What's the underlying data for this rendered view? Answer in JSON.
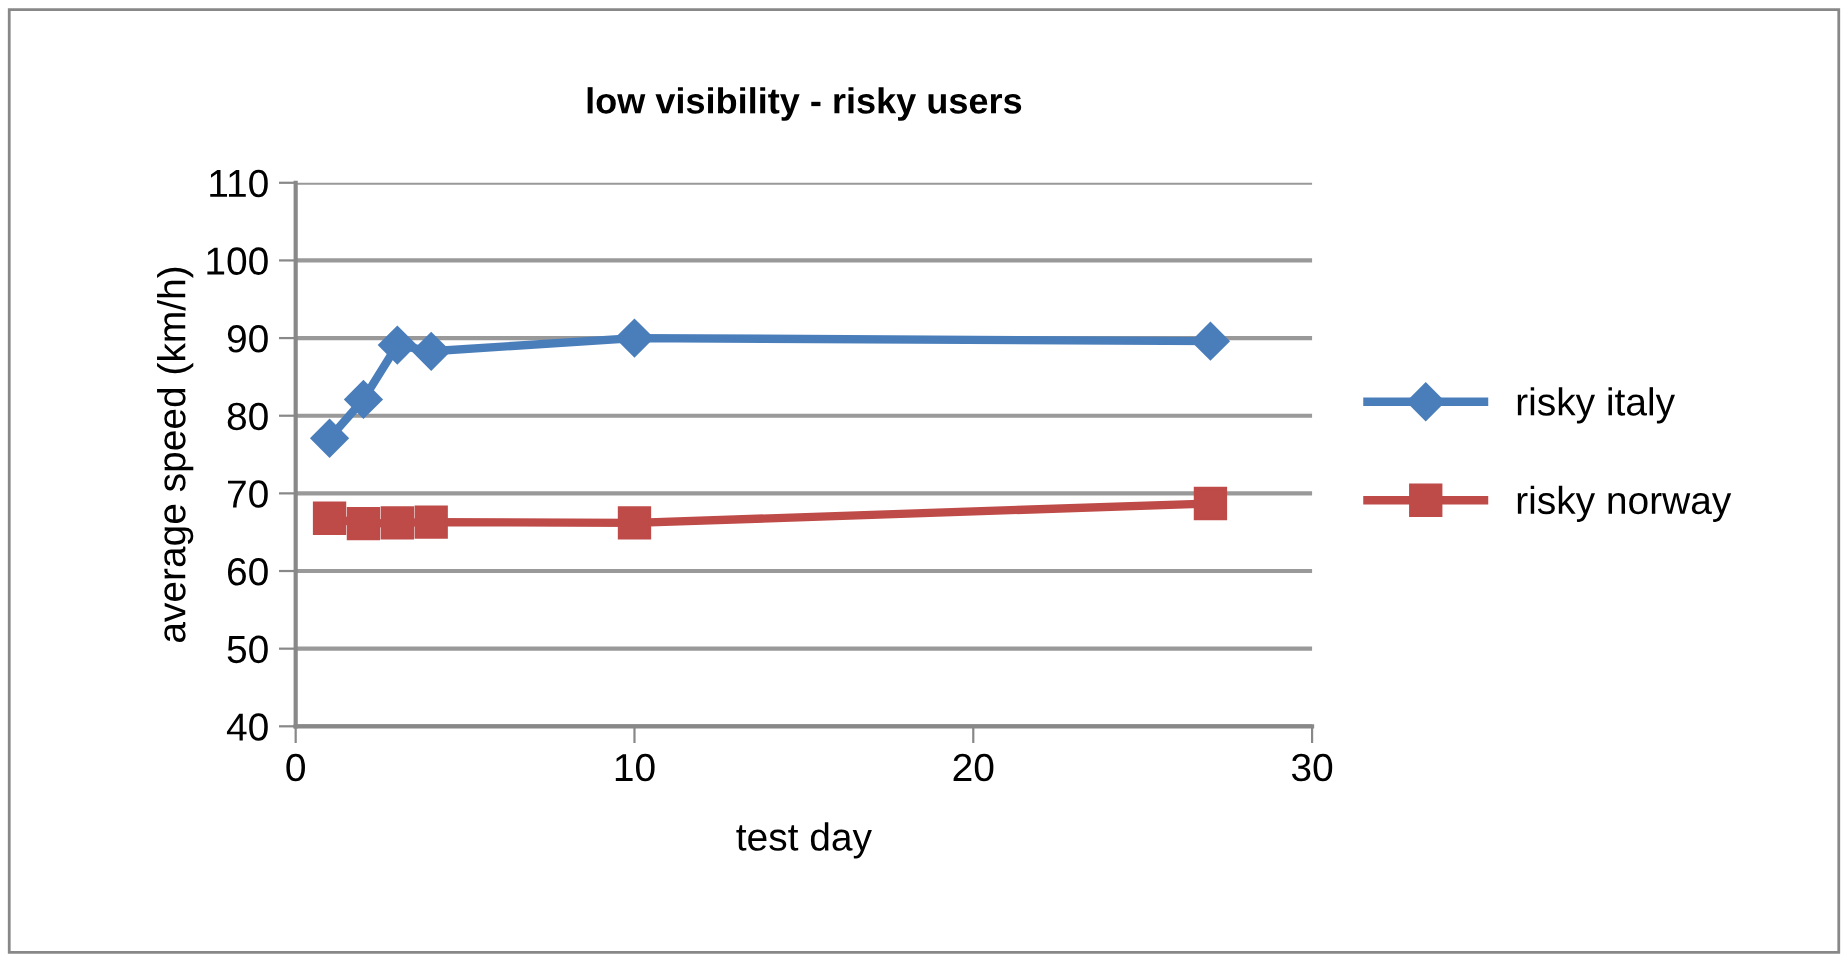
{
  "chart_data": {
    "type": "line",
    "title": "low visibility - risky users",
    "xlabel": "test day",
    "ylabel": "average speed (km/h)",
    "x": [
      1,
      2,
      3,
      4,
      10,
      27
    ],
    "series": [
      {
        "name": "risky italy",
        "color": "#4a7ebb",
        "marker": "diamond",
        "values": [
          77.1,
          82.1,
          89.1,
          88.3,
          90.0,
          89.6
        ]
      },
      {
        "name": "risky norway",
        "color": "#be4b48",
        "marker": "square",
        "values": [
          66.8,
          66.1,
          66.2,
          66.3,
          66.2,
          68.7
        ]
      }
    ],
    "xlim": [
      0,
      30
    ],
    "xticks": [
      0,
      10,
      20,
      30
    ],
    "ylim": [
      40,
      110
    ],
    "yticks": [
      40,
      50,
      60,
      70,
      80,
      90,
      100,
      110
    ],
    "grid": "y",
    "legend": "right",
    "line_style": "solid"
  }
}
